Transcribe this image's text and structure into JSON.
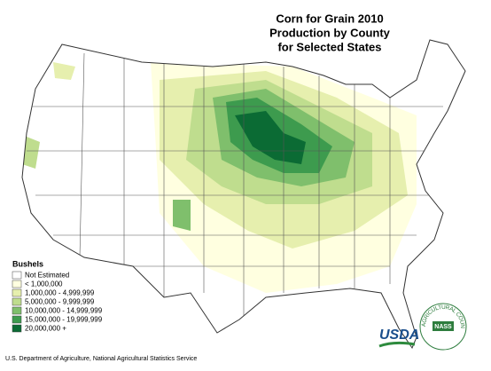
{
  "title": [
    "Corn for Grain 2010",
    "Production by County",
    "for Selected States"
  ],
  "legend": {
    "title": "Bushels",
    "items": [
      {
        "label": "Not Estimated",
        "color": "#ffffff"
      },
      {
        "label": "< 1,000,000",
        "color": "#ffffe0"
      },
      {
        "label": "1,000,000 - 4,999,999",
        "color": "#e6efae"
      },
      {
        "label": "5,000,000 - 9,999,999",
        "color": "#bfdd8e"
      },
      {
        "label": "10,000,000 - 14,999,999",
        "color": "#7fbf6c"
      },
      {
        "label": "15,000,000 - 19,999,999",
        "color": "#3d9b4e"
      },
      {
        "label": "20,000,000 +",
        "color": "#0b6b34"
      }
    ]
  },
  "footer": "U.S. Department of Agriculture, National Agricultural Statistics Service",
  "logos": {
    "usda": "USDA",
    "ring": "AGRICULTURAL COUNTS",
    "nass": "NASS"
  }
}
